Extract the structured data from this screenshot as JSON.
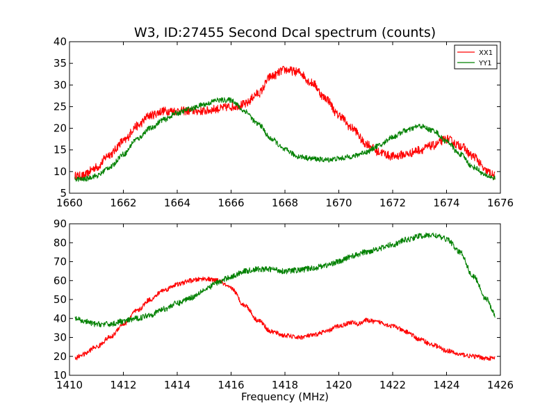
{
  "title": "W3, ID:27455 Second Dcal spectrum (counts)",
  "colors": {
    "XX1": "#ff0000",
    "YY1": "#008000"
  },
  "chart_data": [
    {
      "type": "line",
      "xlabel": "",
      "ylabel": "",
      "xlim": [
        1660,
        1676
      ],
      "ylim": [
        5,
        40
      ],
      "xticks": [
        1660,
        1662,
        1664,
        1666,
        1668,
        1670,
        1672,
        1674,
        1676
      ],
      "yticks": [
        5,
        10,
        15,
        20,
        25,
        30,
        35,
        40
      ],
      "legend": {
        "position": "top-right",
        "entries": [
          "XX1",
          "YY1"
        ]
      },
      "series": [
        {
          "name": "XX1",
          "color": "#ff0000",
          "noise": 1.0,
          "x": [
            1660.2,
            1660.5,
            1661.0,
            1661.5,
            1662.0,
            1662.5,
            1663.0,
            1663.5,
            1664.0,
            1664.5,
            1665.0,
            1665.5,
            1666.0,
            1666.5,
            1667.0,
            1667.5,
            1668.0,
            1668.5,
            1669.0,
            1669.5,
            1670.0,
            1670.5,
            1671.0,
            1671.5,
            1672.0,
            1672.5,
            1673.0,
            1673.5,
            1674.0,
            1674.5,
            1675.0,
            1675.5,
            1675.8
          ],
          "y": [
            9,
            9,
            11,
            14,
            17,
            20.5,
            23,
            24,
            24,
            24,
            24,
            24.5,
            25,
            25.5,
            28,
            32,
            33.5,
            33,
            30.5,
            27,
            23,
            20,
            16.5,
            14.5,
            13.5,
            14,
            15,
            16,
            17.5,
            16,
            13.5,
            10,
            9
          ]
        },
        {
          "name": "YY1",
          "color": "#008000",
          "noise": 0.6,
          "x": [
            1660.2,
            1660.5,
            1661.0,
            1661.5,
            1662.0,
            1662.5,
            1663.0,
            1663.5,
            1664.0,
            1664.5,
            1665.0,
            1665.5,
            1666.0,
            1666.5,
            1667.0,
            1667.5,
            1668.0,
            1668.5,
            1669.0,
            1669.5,
            1670.0,
            1670.5,
            1671.0,
            1671.5,
            1672.0,
            1672.5,
            1673.0,
            1673.5,
            1674.0,
            1674.5,
            1675.0,
            1675.5,
            1675.8
          ],
          "y": [
            8.3,
            8.2,
            9,
            11,
            14,
            17.5,
            20,
            22,
            23.5,
            24.5,
            25.5,
            26.5,
            26.5,
            24,
            21,
            17.5,
            15,
            13.5,
            13,
            12.7,
            13,
            13.5,
            14.5,
            16,
            18,
            19.5,
            20.5,
            19.5,
            17,
            14,
            11,
            9,
            8.5
          ]
        }
      ]
    },
    {
      "type": "line",
      "xlabel": "Frequency (MHz)",
      "ylabel": "",
      "xlim": [
        1410,
        1426
      ],
      "ylim": [
        10,
        90
      ],
      "xticks": [
        1410,
        1412,
        1414,
        1416,
        1418,
        1420,
        1422,
        1424,
        1426
      ],
      "yticks": [
        10,
        20,
        30,
        40,
        50,
        60,
        70,
        80,
        90
      ],
      "series": [
        {
          "name": "XX1",
          "color": "#ff0000",
          "noise": 1.2,
          "x": [
            1410.2,
            1410.5,
            1411.0,
            1411.5,
            1412.0,
            1412.5,
            1413.0,
            1413.5,
            1414.0,
            1414.5,
            1415.0,
            1415.5,
            1416.0,
            1416.5,
            1417.0,
            1417.5,
            1418.0,
            1418.5,
            1419.0,
            1419.5,
            1420.0,
            1420.5,
            1420.7,
            1421.0,
            1421.5,
            1422.0,
            1422.5,
            1423.0,
            1423.5,
            1424.0,
            1424.5,
            1425.0,
            1425.5,
            1425.8
          ],
          "y": [
            19,
            21,
            25,
            30,
            37,
            44,
            50,
            55,
            58,
            60,
            61,
            60,
            56,
            47,
            39,
            33,
            31,
            30,
            31,
            33,
            36,
            38,
            37,
            39,
            38,
            36,
            33,
            29,
            26,
            23,
            21,
            20,
            19,
            19
          ]
        },
        {
          "name": "YY1",
          "color": "#008000",
          "noise": 1.5,
          "x": [
            1410.2,
            1410.5,
            1411.0,
            1411.5,
            1412.0,
            1412.5,
            1413.0,
            1413.5,
            1414.0,
            1414.5,
            1415.0,
            1415.5,
            1416.0,
            1416.5,
            1417.0,
            1417.5,
            1418.0,
            1418.5,
            1419.0,
            1419.5,
            1420.0,
            1420.5,
            1421.0,
            1421.5,
            1422.0,
            1422.5,
            1423.0,
            1423.5,
            1424.0,
            1424.5,
            1425.0,
            1425.5,
            1425.8
          ],
          "y": [
            40,
            38.5,
            37,
            37,
            38.5,
            40,
            42,
            45,
            48,
            51,
            55,
            59,
            62,
            65,
            66,
            66,
            65,
            65.5,
            66.5,
            68,
            70,
            73,
            75,
            77,
            79,
            81.5,
            83.5,
            84,
            82,
            75,
            62,
            50,
            42
          ]
        }
      ]
    }
  ]
}
